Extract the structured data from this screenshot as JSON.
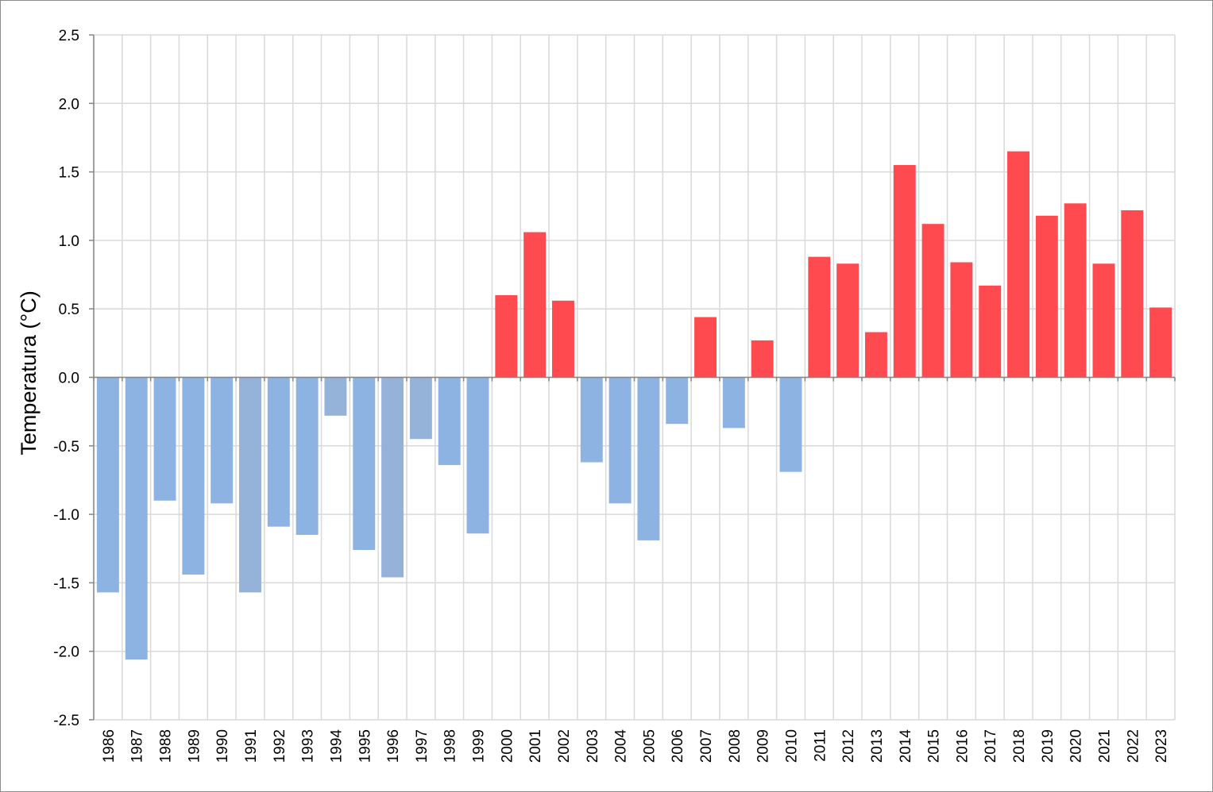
{
  "chart_data": {
    "type": "bar",
    "title": "",
    "xlabel": "",
    "ylabel": "Temperatura  (°C)",
    "ylim": [
      -2.5,
      2.5
    ],
    "y_ticks": [
      "2.5",
      "2.0",
      "1.5",
      "1.0",
      "0.5",
      "0.0",
      "-0.5",
      "-1.0",
      "-1.5",
      "-2.0",
      "-2.5"
    ],
    "y_tick_values": [
      2.5,
      2.0,
      1.5,
      1.0,
      0.5,
      0.0,
      -0.5,
      -1.0,
      -1.5,
      -2.0,
      -2.5
    ],
    "grid": true,
    "legend": "none",
    "colors": {
      "positive": "#ff4a4f",
      "negative": "#8db3e2",
      "negative_alt": "#95b2d8",
      "grid": "#d9d9d9",
      "axis": "#868686"
    },
    "categories": [
      "1986",
      "1987",
      "1988",
      "1989",
      "1990",
      "1991",
      "1992",
      "1993",
      "1994",
      "1995",
      "1996",
      "1997",
      "1998",
      "1999",
      "2000",
      "2001",
      "2002",
      "2003",
      "2004",
      "2005",
      "2006",
      "2007",
      "2008",
      "2009",
      "2010",
      "2011",
      "2012",
      "2013",
      "2014",
      "2015",
      "2016",
      "2017",
      "2018",
      "2019",
      "2020",
      "2021",
      "2022",
      "2023"
    ],
    "values": [
      -1.57,
      -2.06,
      -0.9,
      -1.44,
      -0.92,
      -1.57,
      -1.09,
      -1.15,
      -0.28,
      -1.26,
      -1.46,
      -0.45,
      -0.64,
      -1.14,
      0.6,
      1.06,
      0.56,
      -0.62,
      -0.92,
      -1.19,
      -0.34,
      0.44,
      -0.37,
      0.27,
      -0.69,
      0.88,
      0.83,
      0.33,
      1.55,
      1.12,
      0.84,
      0.67,
      1.65,
      1.18,
      1.27,
      0.83,
      1.22,
      0.51
    ]
  }
}
